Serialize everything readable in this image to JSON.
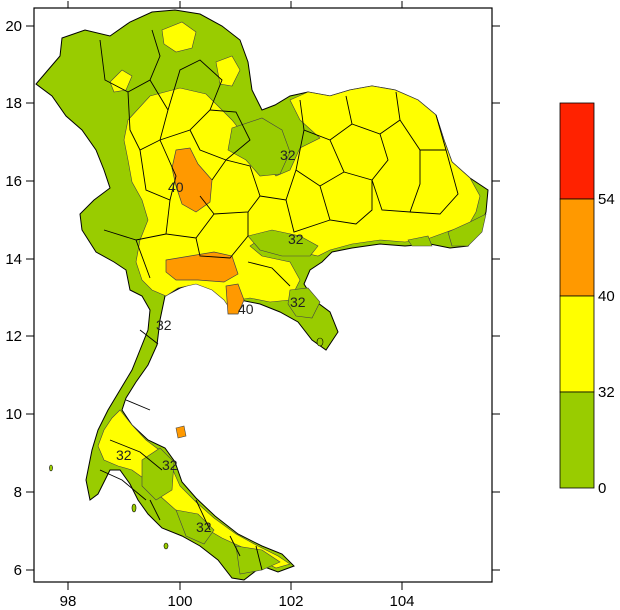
{
  "map": {
    "x_axis": {
      "ticks": [
        "98",
        "100",
        "102",
        "104"
      ]
    },
    "y_axis": {
      "ticks": [
        "20",
        "18",
        "16",
        "14",
        "12",
        "10",
        "8",
        "6"
      ]
    },
    "contour_labels": [
      "32",
      "40",
      "32",
      "32",
      "32",
      "40",
      "32",
      "32",
      "32"
    ]
  },
  "legend": {
    "labels": [
      "54",
      "40",
      "32",
      "0"
    ],
    "colors": [
      "#ff2200",
      "#ff9900",
      "#ffff00",
      "#99cc00"
    ]
  },
  "chart_data": {
    "type": "heatmap",
    "title": "",
    "xlabel": "",
    "ylabel": "",
    "x_ticks": [
      98,
      100,
      102,
      104
    ],
    "y_ticks": [
      6,
      8,
      10,
      12,
      14,
      16,
      18,
      20
    ],
    "legend_bins": [
      {
        "from": 0,
        "to": 32,
        "color": "#99cc00"
      },
      {
        "from": 32,
        "to": 40,
        "color": "#ffff00"
      },
      {
        "from": 40,
        "to": 54,
        "color": "#ff9900"
      },
      {
        "from": 54,
        "to": null,
        "color": "#ff2200"
      }
    ],
    "legend_placement": "right"
  }
}
